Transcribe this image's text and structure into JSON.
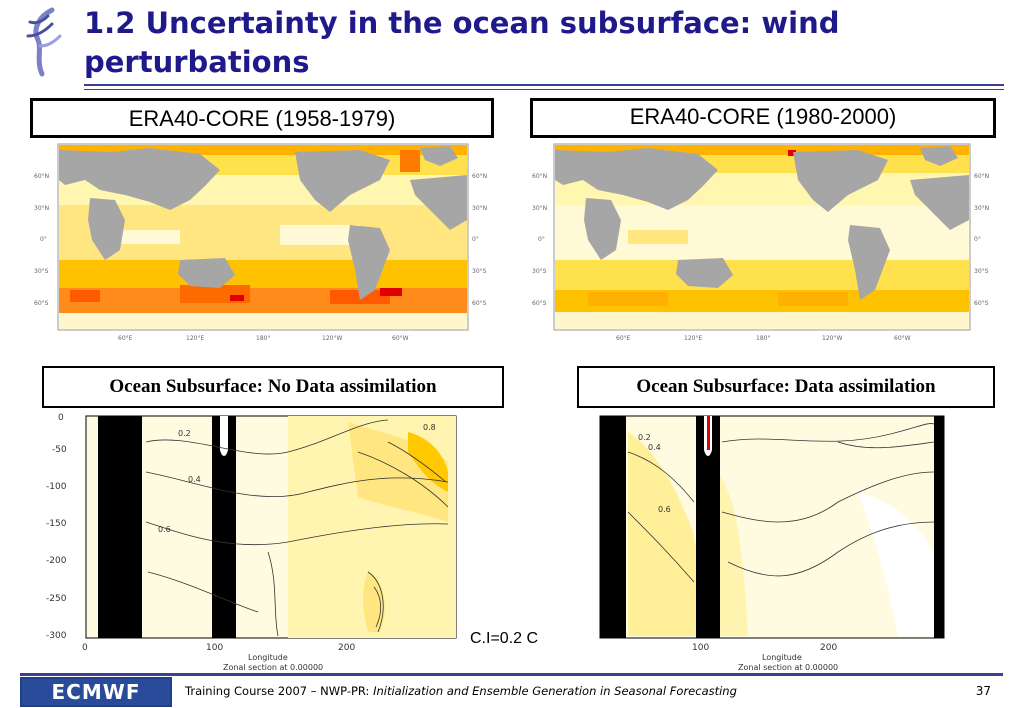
{
  "slide": {
    "title": "1.2 Uncertainty in the ocean subsurface: wind perturbations",
    "panels": {
      "map_left_label": "ERA40-CORE (1958-1979)",
      "map_right_label": "ERA40-CORE (1980-2000)",
      "section_left_label": "Ocean Subsurface:  No Data assimilation",
      "section_right_label": "Ocean Subsurface:  Data assimilation"
    },
    "map_axes": {
      "lat_ticks": [
        "60°N",
        "30°N",
        "0°",
        "30°S",
        "60°S"
      ],
      "lon_ticks": [
        "60°E",
        "120°E",
        "180°",
        "120°W",
        "60°W"
      ]
    },
    "section_axes": {
      "y_ticks": [
        "0",
        "-50",
        "-100",
        "-150",
        "-200",
        "-250",
        "-300"
      ],
      "x_ticks": [
        "0",
        "100",
        "200"
      ],
      "x_label": "Longitude",
      "x_sublabel": "Zonal section at 0.00000",
      "contour_labels": [
        "0.2",
        "0.4",
        "0.6",
        "0.8",
        "0.2",
        "0.4",
        "0.6"
      ]
    },
    "contour_interval": "C.I=0.2 C",
    "footer": {
      "logo_text": "ECMWF",
      "text_prefix": "Training Course 2007 – NWP-PR: ",
      "text_italic": "Initialization and Ensemble Generation  in Seasonal Forecasting",
      "page_number": "37"
    },
    "colors": {
      "title": "#1f1a8c",
      "rule": "#3b3f8f",
      "land": "#a6a6a6",
      "ocean_low": "#fff3a8",
      "ocean_mid": "#ffc800",
      "ocean_high": "#ff7a00",
      "ocean_max": "#e00000"
    }
  }
}
